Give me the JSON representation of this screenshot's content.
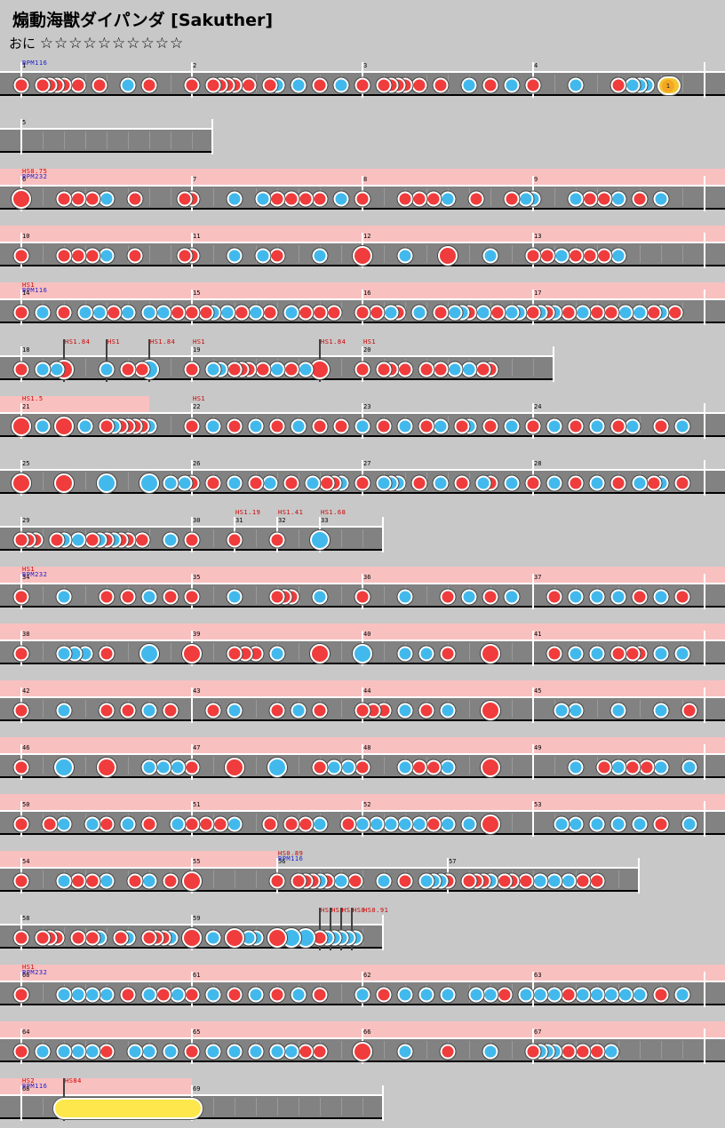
{
  "header": {
    "title": "煽動海獣ダイパンダ [Sakuther]",
    "course": "おに",
    "stars": "☆☆☆☆☆☆☆☆☆☆"
  },
  "colors": {
    "don": "#f03c3c",
    "ka": "#42b9ec",
    "lane": "#828282",
    "hs_band": "#f9c0c0",
    "drumroll": "#fde74c"
  },
  "rows": [
    {
      "labels": [
        {
          "t": "BPM116",
          "k": "bpm",
          "x": 24
        }
      ],
      "bars": [
        {
          "n": "1",
          "x": 24
        },
        {
          "n": "2",
          "x": 216
        },
        {
          "n": "3",
          "x": 408
        },
        {
          "n": "4",
          "x": 600
        }
      ],
      "notes": [
        "d24",
        "d48",
        "d56",
        "d64",
        "d72",
        "d88",
        "d112",
        "k144",
        "d168",
        "d216",
        "d240",
        "d248",
        "d256",
        "d264",
        "d280",
        "d304",
        "k312",
        "k336",
        "d360",
        "k384",
        "d408",
        "d432",
        "d440",
        "d448",
        "d456",
        "d472",
        "d496",
        "k528",
        "d552",
        "k576",
        "d600",
        "k648",
        "d696",
        "k712",
        "k720",
        "k728"
      ],
      "rolls": [
        {
          "x1": 740,
          "x2": 766,
          "label": "1"
        }
      ]
    },
    {
      "bars": [
        {
          "n": "5",
          "x": 24
        }
      ],
      "width": 240,
      "notes": []
    },
    {
      "band": true,
      "labels": [
        {
          "t": "HS0.75",
          "k": "hs",
          "x": 24
        },
        {
          "t": "BPM232",
          "k": "bpm",
          "x": 24
        }
      ],
      "bars": [
        {
          "n": "6",
          "x": 24
        },
        {
          "n": "7",
          "x": 216
        },
        {
          "n": "8",
          "x": 408
        },
        {
          "n": "9",
          "x": 600
        }
      ],
      "notes": [
        "D24",
        "d72",
        "d88",
        "d104",
        "k120",
        "d152",
        "d208",
        "d216",
        "k264",
        "k296",
        "d312",
        "d328",
        "d344",
        "d360",
        "k384",
        "d408",
        "d456",
        "d472",
        "d488",
        "k504",
        "d536",
        "d576",
        "k592",
        "k600",
        "k648",
        "d664",
        "d680",
        "k696",
        "d720",
        "k744"
      ]
    },
    {
      "band": true,
      "bars": [
        {
          "n": "10",
          "x": 24
        },
        {
          "n": "11",
          "x": 216
        },
        {
          "n": "12",
          "x": 408
        },
        {
          "n": "13",
          "x": 600
        }
      ],
      "notes": [
        "d24",
        "d72",
        "d88",
        "d104",
        "k120",
        "d152",
        "d208",
        "d216",
        "k264",
        "k296",
        "d312",
        "k360",
        "D408",
        "k456",
        "D504",
        "k552",
        "d600",
        "d616",
        "k632",
        "d648",
        "d664",
        "d680",
        "k696"
      ]
    },
    {
      "band": true,
      "labels": [
        {
          "t": "HS1",
          "k": "hs",
          "x": 24
        },
        {
          "t": "BPM116",
          "k": "bpm",
          "x": 24
        }
      ],
      "bars": [
        {
          "n": "14",
          "x": 24
        },
        {
          "n": "15",
          "x": 216
        },
        {
          "n": "16",
          "x": 408
        },
        {
          "n": "17",
          "x": 600
        }
      ],
      "notes": [
        "d24",
        "k48",
        "d72",
        "k96",
        "k112",
        "d128",
        "k144",
        "k168",
        "k184",
        "d200",
        "d216",
        "d232",
        "k240",
        "k256",
        "d272",
        "k288",
        "d304",
        "k328",
        "d344",
        "d360",
        "d376",
        "d408",
        "d424",
        "k440",
        "d448",
        "k472",
        "d496",
        "k512",
        "k520",
        "d528",
        "k544",
        "d560",
        "k576",
        "k584",
        "d600",
        "k608",
        "d616",
        "k624",
        "d640",
        "k656",
        "d672",
        "d688",
        "k704",
        "k720",
        "d736",
        "k744",
        "d760"
      ]
    },
    {
      "width": 624,
      "labels": [
        {
          "t": "HS1.84",
          "k": "hs",
          "x": 72,
          "line": true
        },
        {
          "t": "HS1",
          "k": "hs",
          "x": 120,
          "line": true
        },
        {
          "t": "HS1.84",
          "k": "hs",
          "x": 168,
          "line": true
        },
        {
          "t": "HS1",
          "k": "hs",
          "x": 216
        },
        {
          "t": "HS1.84",
          "k": "hs",
          "x": 360,
          "line": true
        },
        {
          "t": "HS1",
          "k": "hs",
          "x": 408
        }
      ],
      "bars": [
        {
          "n": "18",
          "x": 24
        },
        {
          "n": "19",
          "x": 216
        },
        {
          "n": "20",
          "x": 408
        }
      ],
      "notes": [
        "d24",
        "k48",
        "k64",
        "D72",
        "k120",
        "d144",
        "d160",
        "K168",
        "d216",
        "k240",
        "k248",
        "d264",
        "d272",
        "d280",
        "d296",
        "k312",
        "d328",
        "k344",
        "D360",
        "d408",
        "d432",
        "d440",
        "d456",
        "d480",
        "d496",
        "k512",
        "k528",
        "d544",
        "d552"
      ]
    },
    {
      "band": true,
      "bandWidth": 168,
      "labels": [
        {
          "t": "HS1.5",
          "k": "hs",
          "x": 24
        },
        {
          "t": "HS1",
          "k": "hs",
          "x": 216
        }
      ],
      "bars": [
        {
          "n": "21",
          "x": 24
        },
        {
          "n": "22",
          "x": 216
        },
        {
          "n": "23",
          "x": 408
        },
        {
          "n": "24",
          "x": 600
        }
      ],
      "notes": [
        "D24",
        "k48",
        "D72",
        "k96",
        "d120",
        "k128",
        "d136",
        "d144",
        "d152",
        "d160",
        "k168",
        "d216",
        "k240",
        "d264",
        "k288",
        "d312",
        "k336",
        "d360",
        "d384",
        "k408",
        "d432",
        "k456",
        "d480",
        "k496",
        "d520",
        "k528",
        "d552",
        "k576",
        "d600",
        "k624",
        "d648",
        "k672",
        "d696",
        "k712",
        "d744",
        "k768"
      ]
    },
    {
      "bars": [
        {
          "n": "25",
          "x": 24
        },
        {
          "n": "26",
          "x": 216
        },
        {
          "n": "27",
          "x": 408
        },
        {
          "n": "28",
          "x": 600
        }
      ],
      "notes": [
        "D24",
        "D72",
        "K120",
        "K168",
        "k192",
        "k208",
        "d216",
        "d240",
        "k264",
        "d288",
        "k304",
        "d328",
        "k352",
        "d368",
        "d376",
        "k384",
        "d408",
        "k432",
        "k440",
        "k448",
        "d472",
        "k496",
        "d520",
        "k544",
        "d552",
        "k576",
        "d600",
        "k624",
        "d648",
        "k672",
        "d696",
        "k720",
        "d736",
        "k744",
        "d768"
      ]
    },
    {
      "width": 432,
      "labels": [
        {
          "t": "HS1.19",
          "k": "hs",
          "x": 264
        },
        {
          "t": "HS1.41",
          "k": "hs",
          "x": 312
        },
        {
          "t": "HS1.68",
          "k": "hs",
          "x": 360
        }
      ],
      "bars": [
        {
          "n": "29",
          "x": 24
        },
        {
          "n": "30",
          "x": 216
        },
        {
          "n": "31",
          "x": 264
        },
        {
          "n": "32",
          "x": 312
        },
        {
          "n": "33",
          "x": 360
        }
      ],
      "notes": [
        "d24",
        "d32",
        "d40",
        "d64",
        "k72",
        "k88",
        "d104",
        "k112",
        "d120",
        "k128",
        "d136",
        "d144",
        "d160",
        "k192",
        "d216",
        "d264",
        "d312",
        "K360"
      ]
    },
    {
      "band": true,
      "labels": [
        {
          "t": "HS1",
          "k": "hs",
          "x": 24
        },
        {
          "t": "BPM232",
          "k": "bpm",
          "x": 24
        }
      ],
      "bars": [
        {
          "n": "34",
          "x": 24
        },
        {
          "n": "35",
          "x": 216
        },
        {
          "n": "36",
          "x": 408
        },
        {
          "n": "37",
          "x": 600
        }
      ],
      "notes": [
        "d24",
        "k72",
        "d120",
        "d144",
        "k168",
        "d192",
        "d216",
        "k264",
        "d312",
        "d320",
        "d328",
        "k360",
        "d408",
        "k456",
        "d504",
        "k528",
        "d552",
        "k576",
        "d624",
        "k648",
        "k672",
        "k696",
        "d720",
        "k744",
        "d768"
      ]
    },
    {
      "band": true,
      "bars": [
        {
          "n": "38",
          "x": 24
        },
        {
          "n": "39",
          "x": 216
        },
        {
          "n": "40",
          "x": 408
        },
        {
          "n": "41",
          "x": 600
        }
      ],
      "notes": [
        "d24",
        "k72",
        "k84",
        "k96",
        "d120",
        "K168",
        "D216",
        "d264",
        "d276",
        "d288",
        "k312",
        "D360",
        "K408",
        "k456",
        "k480",
        "d504",
        "D552",
        "d624",
        "k648",
        "k672",
        "d696",
        "d712",
        "d720",
        "k744",
        "k768"
      ]
    },
    {
      "band": true,
      "bars": [
        {
          "n": "42",
          "x": 24
        },
        {
          "n": "43",
          "x": 216
        },
        {
          "n": "44",
          "x": 408
        },
        {
          "n": "45",
          "x": 600
        }
      ],
      "notes": [
        "d24",
        "k72",
        "d120",
        "d144",
        "k168",
        "d192",
        "d240",
        "k264",
        "d312",
        "k336",
        "d360",
        "d408",
        "d420",
        "d432",
        "k456",
        "d480",
        "k504",
        "D552",
        "k632",
        "k648",
        "k696",
        "k744",
        "d776"
      ]
    },
    {
      "band": true,
      "bars": [
        {
          "n": "46",
          "x": 24
        },
        {
          "n": "47",
          "x": 216
        },
        {
          "n": "48",
          "x": 408
        },
        {
          "n": "49",
          "x": 600
        }
      ],
      "notes": [
        "d24",
        "K72",
        "D120",
        "k168",
        "k184",
        "k200",
        "d216",
        "D264",
        "K312",
        "d360",
        "k376",
        "k392",
        "d408",
        "k456",
        "d472",
        "d488",
        "k504",
        "D552",
        "k648",
        "d680",
        "k696",
        "d712",
        "d728",
        "k744",
        "k776"
      ]
    },
    {
      "band": true,
      "bars": [
        {
          "n": "50",
          "x": 24
        },
        {
          "n": "51",
          "x": 216
        },
        {
          "n": "52",
          "x": 408
        },
        {
          "n": "53",
          "x": 600
        }
      ],
      "notes": [
        "d24",
        "d56",
        "k72",
        "k104",
        "d120",
        "k144",
        "d168",
        "k200",
        "d216",
        "d232",
        "d248",
        "k264",
        "d304",
        "d328",
        "d344",
        "k360",
        "d392",
        "k408",
        "k424",
        "k440",
        "k456",
        "k472",
        "d488",
        "k504",
        "k528",
        "D552",
        "k632",
        "k648",
        "k672",
        "k696",
        "k720",
        "d744",
        "k776"
      ]
    },
    {
      "width": 720,
      "band": true,
      "bandWidth": 312,
      "labels": [
        {
          "t": "HS0.89",
          "k": "hs",
          "x": 312
        },
        {
          "t": "BPM116",
          "k": "bpm",
          "x": 312
        }
      ],
      "bars": [
        {
          "n": "54",
          "x": 24
        },
        {
          "n": "55",
          "x": 216
        },
        {
          "n": "56",
          "x": 312
        },
        {
          "n": "57",
          "x": 504
        }
      ],
      "notes": [
        "d24",
        "k72",
        "d88",
        "d104",
        "k120",
        "d152",
        "k168",
        "d192",
        "D216",
        "d312",
        "d336",
        "d344",
        "d352",
        "k360",
        "d368",
        "k384",
        "d400",
        "k432",
        "d456",
        "k480",
        "k488",
        "k496",
        "d504",
        "d528",
        "d536",
        "d544",
        "k552",
        "d568",
        "d576",
        "d592",
        "k608",
        "k624",
        "k640",
        "d656",
        "d672"
      ]
    },
    {
      "width": 432,
      "labels": [
        {
          "t": "HS2",
          "k": "hs",
          "x": 360,
          "line": true
        },
        {
          "t": "HS3",
          "k": "hs",
          "x": 372,
          "line": true
        },
        {
          "t": "HS5",
          "k": "hs",
          "x": 384,
          "line": true
        },
        {
          "t": "HS8",
          "k": "hs",
          "x": 396,
          "line": true
        },
        {
          "t": "HS0.91",
          "k": "hs",
          "x": 408
        }
      ],
      "bars": [
        {
          "n": "58",
          "x": 24
        },
        {
          "n": "59",
          "x": 216
        }
      ],
      "notes": [
        "d24",
        "d48",
        "d56",
        "d64",
        "d88",
        "d104",
        "k112",
        "d136",
        "k144",
        "d168",
        "d176",
        "d184",
        "k192",
        "D216",
        "k240",
        "D264",
        "k280",
        "k288",
        "D312",
        "K328",
        "K344",
        "d360",
        "k368",
        "k376",
        "k384",
        "k392",
        "k400"
      ]
    },
    {
      "band": true,
      "labels": [
        {
          "t": "HS1",
          "k": "hs",
          "x": 24
        },
        {
          "t": "BPM232",
          "k": "bpm",
          "x": 24
        }
      ],
      "bars": [
        {
          "n": "60",
          "x": 24
        },
        {
          "n": "61",
          "x": 216
        },
        {
          "n": "62",
          "x": 408
        },
        {
          "n": "63",
          "x": 600
        }
      ],
      "notes": [
        "d24",
        "k72",
        "k88",
        "k104",
        "k120",
        "d144",
        "k168",
        "d184",
        "k200",
        "d216",
        "k240",
        "d264",
        "k288",
        "d312",
        "k336",
        "d360",
        "k408",
        "d432",
        "k456",
        "k480",
        "k504",
        "k536",
        "k552",
        "d568",
        "k592",
        "k608",
        "k624",
        "d640",
        "k656",
        "k672",
        "k688",
        "k704",
        "k720",
        "d744",
        "k768"
      ]
    },
    {
      "band": true,
      "bars": [
        {
          "n": "64",
          "x": 24
        },
        {
          "n": "65",
          "x": 216
        },
        {
          "n": "66",
          "x": 408
        },
        {
          "n": "67",
          "x": 600
        }
      ],
      "notes": [
        "d24",
        "k48",
        "k72",
        "k88",
        "k104",
        "d120",
        "k152",
        "k168",
        "k192",
        "d216",
        "k240",
        "k264",
        "k288",
        "k312",
        "k328",
        "d344",
        "d360",
        "D408",
        "k456",
        "d504",
        "k552",
        "d600",
        "k608",
        "k616",
        "k624",
        "d640",
        "d656",
        "d672",
        "k688"
      ]
    },
    {
      "width": 432,
      "band": true,
      "bandWidth": 216,
      "labels": [
        {
          "t": "HS2",
          "k": "hs",
          "x": 24
        },
        {
          "t": "BPM116",
          "k": "bpm",
          "x": 24
        },
        {
          "t": "HS84",
          "k": "hs",
          "x": 72,
          "line": true
        }
      ],
      "bars": [
        {
          "n": "68",
          "x": 24
        },
        {
          "n": "69",
          "x": 216
        }
      ],
      "notes": [],
      "rolls": [
        {
          "x1": 60,
          "x2": 228,
          "big": true
        }
      ]
    }
  ]
}
